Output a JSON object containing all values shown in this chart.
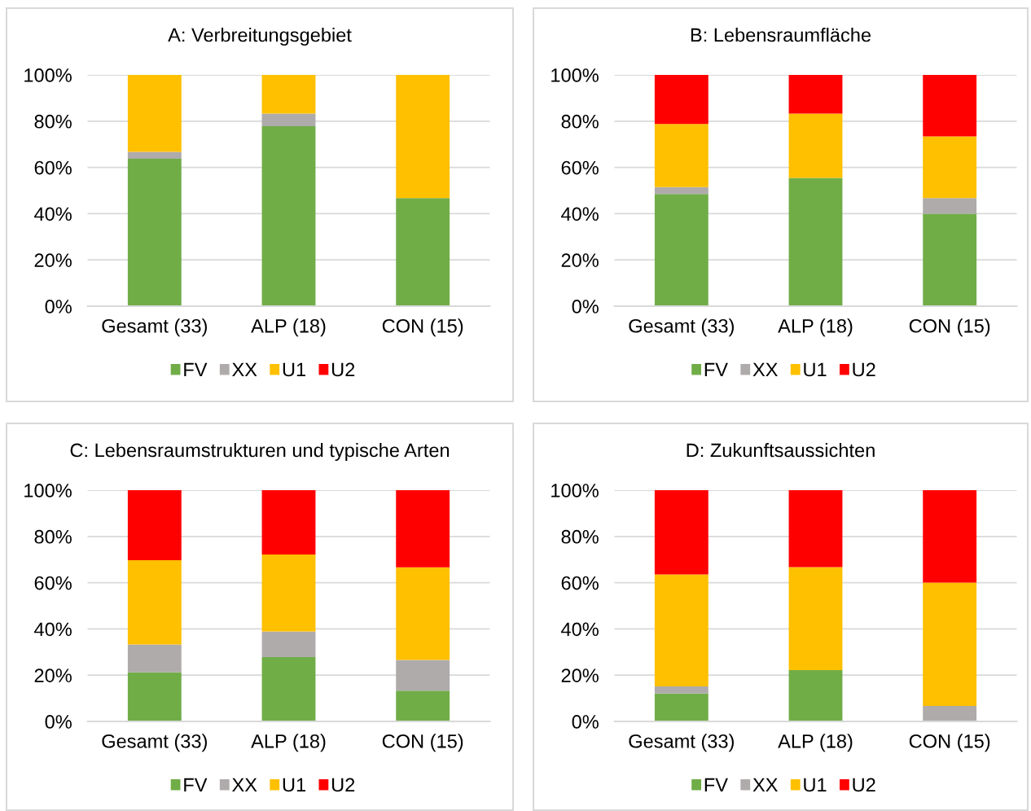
{
  "chart_data": [
    {
      "type": "bar",
      "title": "A: Verbreitungsgebiet",
      "categories": [
        "Gesamt (33)",
        "ALP (18)",
        "CON (15)"
      ],
      "stacked": true,
      "series": [
        {
          "name": "FV",
          "color": "#70ad47",
          "values": [
            63.7,
            77.8,
            46.7
          ]
        },
        {
          "name": "XX",
          "color": "#afabab",
          "values": [
            3.0,
            5.5,
            0
          ]
        },
        {
          "name": "U1",
          "color": "#ffc000",
          "values": [
            33.3,
            16.7,
            53.3
          ]
        },
        {
          "name": "U2",
          "color": "#ff0000",
          "values": [
            0,
            0,
            0
          ]
        }
      ],
      "ylim": [
        0,
        100
      ],
      "yticks": [
        {
          "value": 0,
          "label": "0%"
        },
        {
          "value": 20,
          "label": "20%"
        },
        {
          "value": 40,
          "label": "40%"
        },
        {
          "value": 60,
          "label": "60%"
        },
        {
          "value": 80,
          "label": "80%"
        },
        {
          "value": 100,
          "label": "100%"
        }
      ],
      "grid": "y",
      "legend": "bottom"
    },
    {
      "type": "bar",
      "title": "B: Lebensraumfläche",
      "categories": [
        "Gesamt (33)",
        "ALP (18)",
        "CON (15)"
      ],
      "stacked": true,
      "series": [
        {
          "name": "FV",
          "color": "#70ad47",
          "values": [
            48.5,
            55.5,
            40.0
          ]
        },
        {
          "name": "XX",
          "color": "#afabab",
          "values": [
            3.0,
            0,
            6.7
          ]
        },
        {
          "name": "U1",
          "color": "#ffc000",
          "values": [
            27.3,
            27.8,
            26.7
          ]
        },
        {
          "name": "U2",
          "color": "#ff0000",
          "values": [
            21.2,
            16.7,
            26.6
          ]
        }
      ],
      "ylim": [
        0,
        100
      ],
      "yticks": [
        {
          "value": 0,
          "label": "0%"
        },
        {
          "value": 20,
          "label": "20%"
        },
        {
          "value": 40,
          "label": "40%"
        },
        {
          "value": 60,
          "label": "60%"
        },
        {
          "value": 80,
          "label": "80%"
        },
        {
          "value": 100,
          "label": "100%"
        }
      ],
      "grid": "y",
      "legend": "bottom"
    },
    {
      "type": "bar",
      "title": "C: Lebensraumstrukturen und typische Arten",
      "categories": [
        "Gesamt (33)",
        "ALP (18)",
        "CON (15)"
      ],
      "stacked": true,
      "series": [
        {
          "name": "FV",
          "color": "#70ad47",
          "values": [
            21.2,
            27.8,
            13.3
          ]
        },
        {
          "name": "XX",
          "color": "#afabab",
          "values": [
            12.1,
            11.1,
            13.3
          ]
        },
        {
          "name": "U1",
          "color": "#ffc000",
          "values": [
            36.4,
            33.3,
            40.0
          ]
        },
        {
          "name": "U2",
          "color": "#ff0000",
          "values": [
            30.3,
            27.8,
            33.4
          ]
        }
      ],
      "ylim": [
        0,
        100
      ],
      "yticks": [
        {
          "value": 0,
          "label": "0%"
        },
        {
          "value": 20,
          "label": "20%"
        },
        {
          "value": 40,
          "label": "40%"
        },
        {
          "value": 60,
          "label": "60%"
        },
        {
          "value": 80,
          "label": "80%"
        },
        {
          "value": 100,
          "label": "100%"
        }
      ],
      "grid": "y",
      "legend": "bottom"
    },
    {
      "type": "bar",
      "title": "D: Zukunftsaussichten",
      "categories": [
        "Gesamt (33)",
        "ALP (18)",
        "CON (15)"
      ],
      "stacked": true,
      "series": [
        {
          "name": "FV",
          "color": "#70ad47",
          "values": [
            12.1,
            22.2,
            0
          ]
        },
        {
          "name": "XX",
          "color": "#afabab",
          "values": [
            3.0,
            0,
            6.7
          ]
        },
        {
          "name": "U1",
          "color": "#ffc000",
          "values": [
            48.5,
            44.5,
            53.3
          ]
        },
        {
          "name": "U2",
          "color": "#ff0000",
          "values": [
            36.4,
            33.3,
            40.0
          ]
        }
      ],
      "ylim": [
        0,
        100
      ],
      "yticks": [
        {
          "value": 0,
          "label": "0%"
        },
        {
          "value": 20,
          "label": "20%"
        },
        {
          "value": 40,
          "label": "40%"
        },
        {
          "value": 60,
          "label": "60%"
        },
        {
          "value": 80,
          "label": "80%"
        },
        {
          "value": 100,
          "label": "100%"
        }
      ],
      "grid": "y",
      "legend": "bottom"
    }
  ]
}
